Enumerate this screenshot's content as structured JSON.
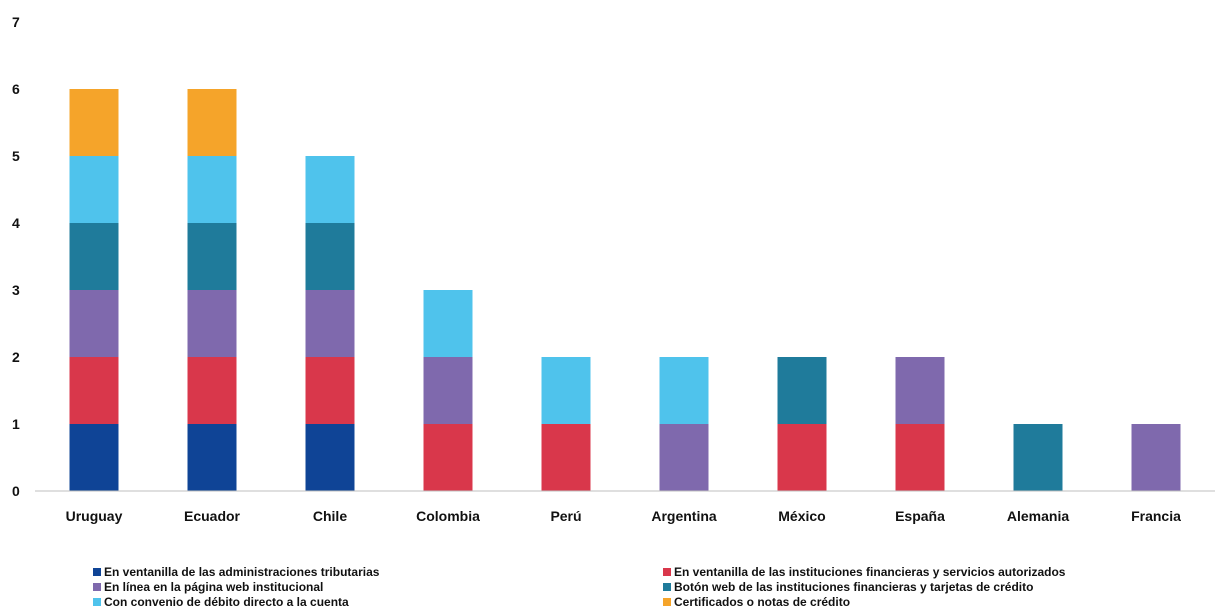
{
  "chart_data": {
    "type": "bar",
    "stacked": true,
    "title": "",
    "xlabel": "",
    "ylabel": "",
    "ylim": [
      0,
      7
    ],
    "yticks": [
      "0",
      "1",
      "2",
      "3",
      "4",
      "5",
      "6",
      "7"
    ],
    "grid": false,
    "legend_position": "bottom",
    "categories": [
      "Uruguay",
      "Ecuador",
      "Chile",
      "Colombia",
      "Perú",
      "Argentina",
      "México",
      "España",
      "Alemania",
      "Francia"
    ],
    "series": [
      {
        "name": "En ventanilla de las administraciones tributarias",
        "color": "#0f4496",
        "values": [
          1,
          1,
          1,
          0,
          0,
          0,
          0,
          0,
          0,
          0
        ]
      },
      {
        "name": "En ventanilla  de las instituciones financieras y servicios autorizados",
        "color": "#d9374b",
        "values": [
          1,
          1,
          1,
          1,
          1,
          0,
          1,
          1,
          0,
          0
        ]
      },
      {
        "name": "En línea en la página web institucional",
        "color": "#7f69ad",
        "values": [
          1,
          1,
          1,
          1,
          0,
          1,
          0,
          1,
          0,
          1
        ]
      },
      {
        "name": "Botón web de las instituciones financieras y tarjetas de crédito",
        "color": "#1f7b9b",
        "values": [
          1,
          1,
          1,
          0,
          0,
          0,
          1,
          0,
          1,
          0
        ]
      },
      {
        "name": "Con convenio de débito directo a la cuenta",
        "color": "#4fc3ec",
        "values": [
          1,
          1,
          1,
          1,
          1,
          1,
          0,
          0,
          0,
          0
        ]
      },
      {
        "name": "Certificados o  notas  de crédito",
        "color": "#f5a42a",
        "values": [
          1,
          1,
          0,
          0,
          0,
          0,
          0,
          0,
          0,
          0
        ]
      }
    ]
  }
}
